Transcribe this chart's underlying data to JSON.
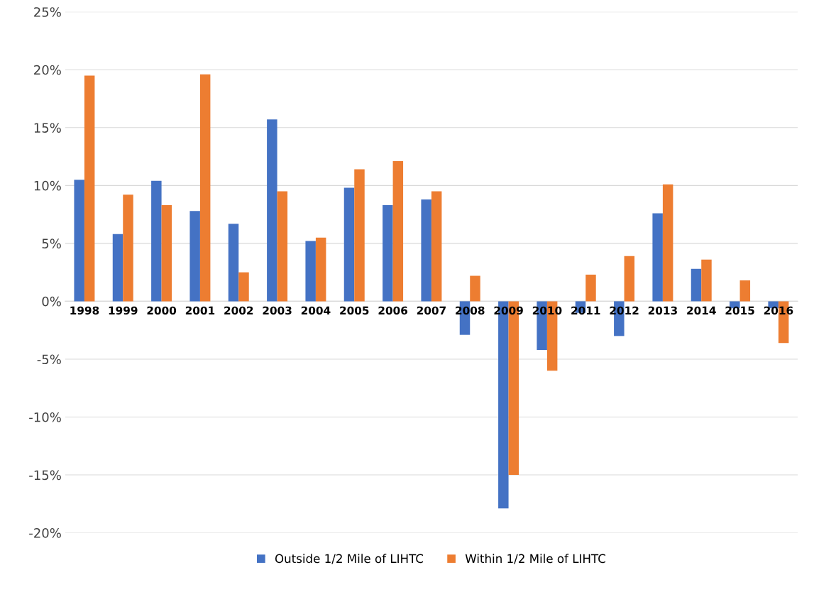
{
  "chart_data": {
    "type": "bar",
    "categories": [
      "1998",
      "1999",
      "2000",
      "2001",
      "2002",
      "2003",
      "2004",
      "2005",
      "2006",
      "2007",
      "2008",
      "2009",
      "2010",
      "2011",
      "2012",
      "2013",
      "2014",
      "2015",
      "2016"
    ],
    "series": [
      {
        "name": "Outside 1/2 Mile of LIHTC",
        "color": "#4472c4",
        "values": [
          10.5,
          5.8,
          10.4,
          7.8,
          6.7,
          15.7,
          5.2,
          9.8,
          8.3,
          8.8,
          -2.9,
          -17.9,
          -4.2,
          -1.0,
          -3.0,
          7.6,
          2.8,
          -0.6,
          -0.6
        ]
      },
      {
        "name": "Within 1/2 Mile of LIHTC",
        "color": "#ed7d31",
        "values": [
          19.5,
          9.2,
          8.3,
          19.6,
          2.5,
          9.5,
          5.5,
          11.4,
          12.1,
          9.5,
          2.2,
          -15.0,
          -6.0,
          2.3,
          3.9,
          10.1,
          3.6,
          1.8,
          -3.6
        ]
      }
    ],
    "ylim": [
      -20,
      25
    ],
    "yticks": [
      {
        "value": -20,
        "label": "-20%"
      },
      {
        "value": -15,
        "label": "-15%"
      },
      {
        "value": -10,
        "label": "-10%"
      },
      {
        "value": -5,
        "label": "-5%"
      },
      {
        "value": 0,
        "label": "0%"
      },
      {
        "value": 5,
        "label": "5%"
      },
      {
        "value": 10,
        "label": "10%"
      },
      {
        "value": 15,
        "label": "15%"
      },
      {
        "value": 20,
        "label": "20%"
      },
      {
        "value": 25,
        "label": "25%"
      }
    ],
    "grid": "y",
    "legend": "bottom"
  }
}
